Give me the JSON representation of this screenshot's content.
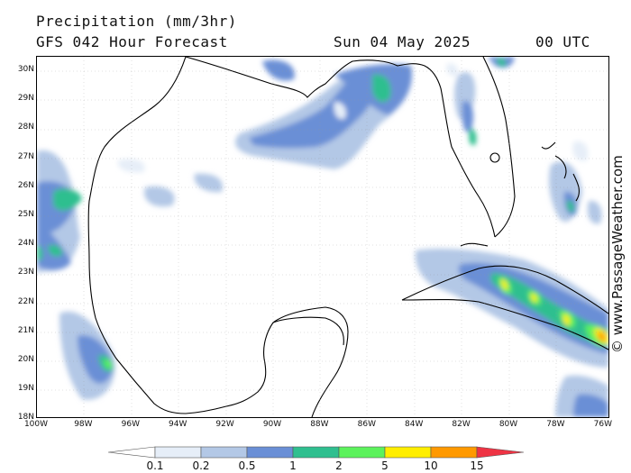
{
  "header": {
    "title": "Precipitation (mm/3hr)",
    "forecast": "GFS 042 Hour Forecast",
    "date": "Sun 04 May 2025",
    "time": "00 UTC"
  },
  "credit": "© www.PassageWeather.com",
  "lat_labels": [
    "30N",
    "29N",
    "28N",
    "27N",
    "26N",
    "25N",
    "24N",
    "23N",
    "22N",
    "21N",
    "20N",
    "19N",
    "18N"
  ],
  "lon_labels": [
    "100W",
    "98W",
    "96W",
    "94W",
    "92W",
    "90W",
    "88W",
    "86W",
    "84W",
    "82W",
    "80W",
    "78W",
    "76W"
  ],
  "colorbar": {
    "labels": [
      "0.1",
      "0.2",
      "0.5",
      "1",
      "2",
      "5",
      "10",
      "15"
    ],
    "colors": [
      "#ffffff",
      "#e6eef8",
      "#b3c8e6",
      "#6a8fd6",
      "#2fbf8f",
      "#5cf25c",
      "#ffee00",
      "#ff9900",
      "#ee3344"
    ]
  },
  "map": {
    "region": "Gulf of Mexico",
    "land_color": "#ffffff",
    "coast_color": "#000000"
  }
}
